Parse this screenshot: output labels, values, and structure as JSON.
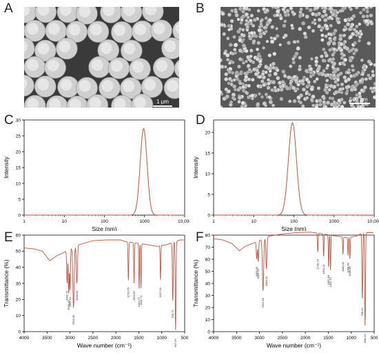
{
  "panels": {
    "A": {
      "letter": "A",
      "scalebar": "1 μm"
    },
    "B": {
      "letter": "B",
      "scalebar": "500 nm"
    },
    "C": {
      "letter": "C"
    },
    "D": {
      "letter": "D"
    },
    "E": {
      "letter": "E"
    },
    "F": {
      "letter": "F"
    }
  },
  "colors": {
    "line": "#b5553e",
    "axis": "#000000",
    "sem_bg": "#3a3a3a",
    "particle": "#d8d8d8"
  },
  "chart_data": [
    {
      "panel": "C",
      "type": "line",
      "xlabel": "Size (nm)",
      "ylabel": "Intensity",
      "xscale": "log",
      "xlim": [
        1,
        10000
      ],
      "ylim": [
        0,
        30
      ],
      "xticks": [
        1,
        10,
        100,
        1000,
        10000
      ],
      "xtick_labels": [
        "1",
        "10",
        "100",
        "1000",
        "10,000"
      ],
      "yticks": [
        0,
        5,
        10,
        15,
        20,
        25,
        30
      ],
      "ytick_labels": [
        "0",
        "5",
        "10",
        "15",
        "20",
        "25",
        "30"
      ],
      "peak": {
        "center": 950,
        "height": 27.3,
        "log_sigma": 0.085
      }
    },
    {
      "panel": "D",
      "type": "line",
      "xlabel": "Size (nm)",
      "ylabel": "Intensity",
      "xscale": "log",
      "xlim": [
        1,
        10000
      ],
      "ylim": [
        0,
        23
      ],
      "xticks": [
        1,
        10,
        100,
        1000,
        10000
      ],
      "xtick_labels": [
        "1",
        "10",
        "100",
        "1000",
        "10,000"
      ],
      "yticks": [
        0,
        5,
        10,
        15,
        20
      ],
      "ytick_labels": [
        "0",
        "5",
        "10",
        "15",
        "20"
      ],
      "peak": {
        "center": 92,
        "height": 22.3,
        "log_sigma": 0.1
      }
    },
    {
      "panel": "E",
      "type": "line",
      "xlabel": "Wave number (cm⁻¹)",
      "ylabel": "Transmittance (%)",
      "xlim": [
        4000,
        500
      ],
      "ylim": [
        0,
        60
      ],
      "xticks": [
        4000,
        3500,
        3000,
        2500,
        2000,
        1500,
        1000,
        500
      ],
      "xtick_labels": [
        "4000",
        "3500",
        "3000",
        "2500",
        "2000",
        "1500",
        "1000",
        "500"
      ],
      "yticks": [
        0,
        10,
        20,
        30,
        40,
        50,
        60
      ],
      "ytick_labels": [
        "0",
        "10",
        "20",
        "30",
        "40",
        "50",
        "60"
      ],
      "baseline": [
        [
          4000,
          52
        ],
        [
          3800,
          51.5
        ],
        [
          3600,
          50
        ],
        [
          3440,
          44
        ],
        [
          3300,
          47
        ],
        [
          3150,
          49
        ],
        [
          2800,
          54
        ],
        [
          2500,
          56.5
        ],
        [
          2200,
          57
        ],
        [
          1900,
          57
        ],
        [
          1800,
          56
        ],
        [
          1300,
          54
        ],
        [
          1100,
          53
        ],
        [
          900,
          54
        ],
        [
          800,
          55
        ],
        [
          700,
          56
        ],
        [
          600,
          57
        ],
        [
          520,
          57
        ]
      ],
      "bands": [
        {
          "x": 3061.72,
          "y": 30,
          "w": 10
        },
        {
          "x": 3026.42,
          "y": 24,
          "w": 9
        },
        {
          "x": 2999.13,
          "y": 26,
          "w": 8
        },
        {
          "x": 2923.3,
          "y": 15,
          "w": 14
        },
        {
          "x": 2849.6,
          "y": 30,
          "w": 12
        },
        {
          "x": 1726.75,
          "y": 32,
          "w": 8
        },
        {
          "x": 1602.87,
          "y": 30,
          "w": 7
        },
        {
          "x": 1492.77,
          "y": 26,
          "w": 7
        },
        {
          "x": 1451.71,
          "y": 27,
          "w": 7
        },
        {
          "x": 1027.61,
          "y": 32,
          "w": 7
        },
        {
          "x": 758.72,
          "y": 19,
          "w": 9
        },
        {
          "x": 697.53,
          "y": 1,
          "w": 9
        }
      ],
      "annotations": [
        {
          "x": 3061.72,
          "label": "3061.72"
        },
        {
          "x": 3026.42,
          "label": "3026.42"
        },
        {
          "x": 2999.13,
          "label": "2999.13"
        },
        {
          "x": 2923.3,
          "label": "2923.30"
        },
        {
          "x": 2849.6,
          "label": "2849.60"
        },
        {
          "x": 1726.75,
          "label": "1726.75"
        },
        {
          "x": 1602.87,
          "label": "1602.87"
        },
        {
          "x": 1492.77,
          "label": "1492.77"
        },
        {
          "x": 1451.71,
          "label": "1451.71"
        },
        {
          "x": 1027.61,
          "label": "1027.61"
        },
        {
          "x": 758.72,
          "label": "758.72"
        },
        {
          "x": 697.53,
          "label": "697.53"
        }
      ]
    },
    {
      "panel": "F",
      "type": "line",
      "xlabel": "Wave number (cm⁻¹)",
      "ylabel": "Transmittance (%)",
      "xlim": [
        4000,
        500
      ],
      "ylim": [
        0,
        80
      ],
      "xticks": [
        4000,
        3500,
        3000,
        2500,
        2000,
        1500,
        1000,
        500
      ],
      "xtick_labels": [
        "4000",
        "3500",
        "3000",
        "2500",
        "2000",
        "1500",
        "1000",
        "500"
      ],
      "yticks": [
        0,
        10,
        20,
        30,
        40,
        50,
        60,
        70,
        80
      ],
      "ytick_labels": [
        "0",
        "10",
        "20",
        "30",
        "40",
        "50",
        "60",
        "70",
        "80"
      ],
      "baseline": [
        [
          4000,
          77
        ],
        [
          3800,
          76
        ],
        [
          3600,
          73
        ],
        [
          3440,
          67
        ],
        [
          3300,
          71
        ],
        [
          3150,
          73
        ],
        [
          2800,
          79
        ],
        [
          2500,
          81
        ],
        [
          2200,
          82
        ],
        [
          1900,
          82.5
        ],
        [
          1700,
          81.5
        ],
        [
          1300,
          79
        ],
        [
          1100,
          78
        ],
        [
          900,
          79
        ],
        [
          800,
          81
        ],
        [
          700,
          82
        ],
        [
          600,
          82
        ],
        [
          520,
          82
        ]
      ],
      "bands": [
        {
          "x": 3059.55,
          "y": 60,
          "w": 10
        },
        {
          "x": 3026.24,
          "y": 58,
          "w": 9
        },
        {
          "x": 2922.85,
          "y": 34,
          "w": 14
        },
        {
          "x": 2849.01,
          "y": 52,
          "w": 12
        },
        {
          "x": 1728.73,
          "y": 66,
          "w": 8
        },
        {
          "x": 1601.11,
          "y": 62,
          "w": 7
        },
        {
          "x": 1492.83,
          "y": 53,
          "w": 7
        },
        {
          "x": 1451.79,
          "y": 51,
          "w": 7
        },
        {
          "x": 1180.32,
          "y": 64,
          "w": 7
        },
        {
          "x": 1068.98,
          "y": 63,
          "w": 7
        },
        {
          "x": 1028.45,
          "y": 60,
          "w": 7
        },
        {
          "x": 758.31,
          "y": 27,
          "w": 9
        },
        {
          "x": 698.13,
          "y": 5,
          "w": 9
        }
      ],
      "annotations": [
        {
          "x": 3059.55,
          "label": "3059.55"
        },
        {
          "x": 3026.24,
          "label": "3026.24"
        },
        {
          "x": 2922.85,
          "label": "2922.85"
        },
        {
          "x": 2849.01,
          "label": "2849.01"
        },
        {
          "x": 1728.73,
          "label": "1728.73"
        },
        {
          "x": 1601.11,
          "label": "1601.11"
        },
        {
          "x": 1492.83,
          "label": "1492.83"
        },
        {
          "x": 1451.79,
          "label": "1451.79"
        },
        {
          "x": 1180.32,
          "label": "1180.32"
        },
        {
          "x": 1068.98,
          "label": "1068.98"
        },
        {
          "x": 1028.45,
          "label": "1028.45"
        },
        {
          "x": 758.31,
          "label": "758.31"
        },
        {
          "x": 698.13,
          "label": "698.13"
        }
      ]
    }
  ]
}
